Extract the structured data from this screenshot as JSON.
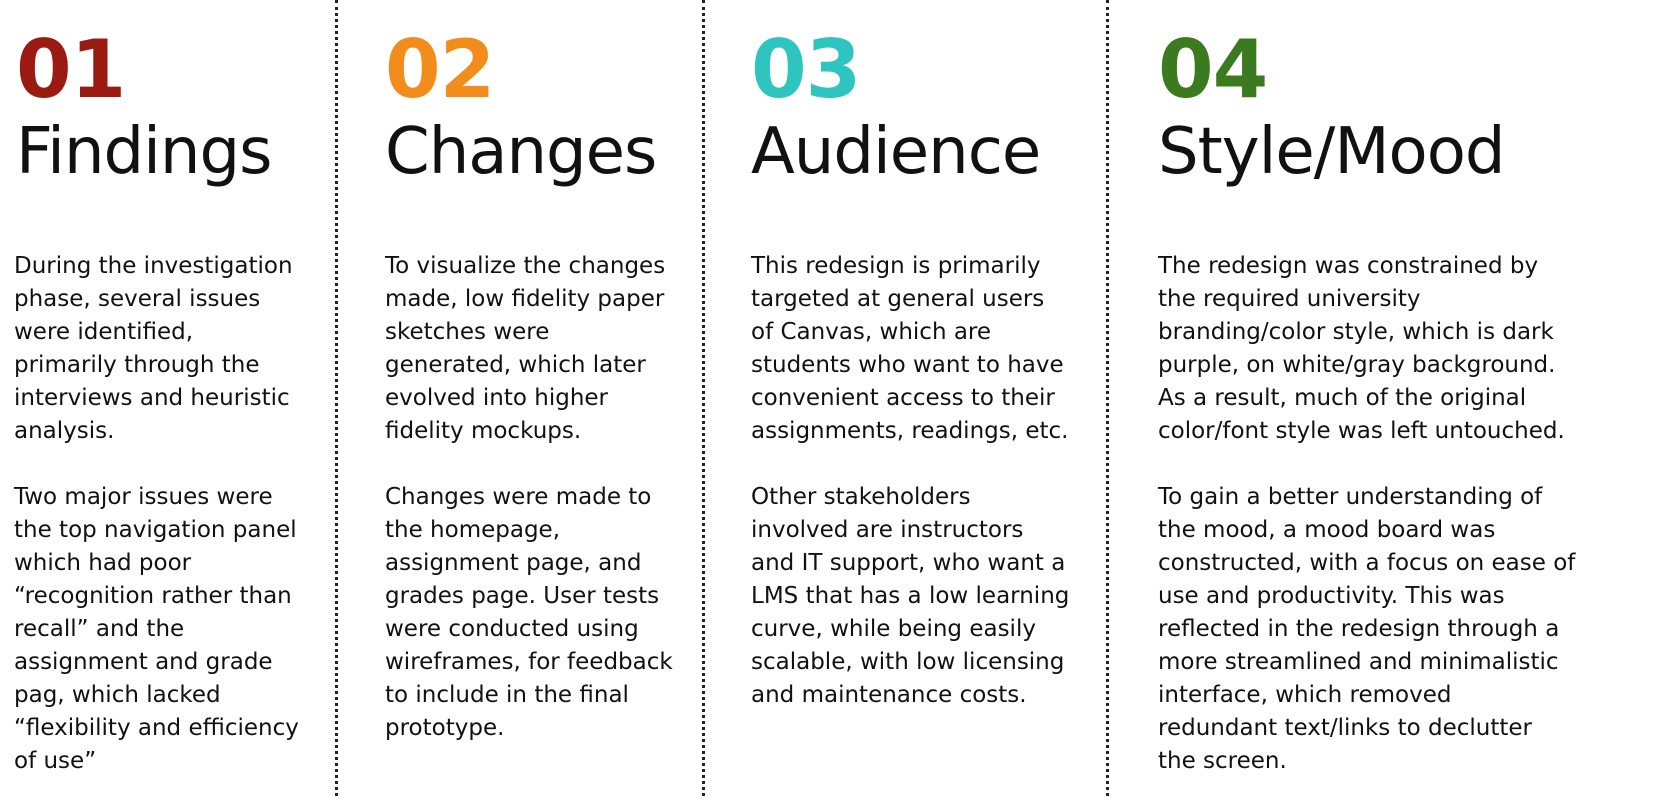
{
  "columns": [
    {
      "number": "01",
      "title": "Findings",
      "color": "#9b1b13",
      "paragraphs": [
        "During the investigation\nphase, several issues\nwere identified,\nprimarily through the\ninterviews and heuristic\nanalysis.",
        "Two major issues were\nthe top navigation panel\nwhich had poor\n“recognition rather than\nrecall” and the\nassignment and grade\npag, which lacked\n“flexibility and efficiency\nof use”"
      ]
    },
    {
      "number": "02",
      "title": "Changes",
      "color": "#f28c1a",
      "paragraphs": [
        "To visualize the changes\nmade, low fidelity paper\nsketches were\ngenerated, which later\nevolved into higher\nfidelity mockups.",
        "Changes were made to\nthe homepage,\nassignment page, and\ngrades page. User tests\nwere conducted using\nwireframes, for feedback\nto  include in the final\nprototype."
      ]
    },
    {
      "number": "03",
      "title": "Audience",
      "color": "#2ec4bf",
      "paragraphs": [
        "This redesign is primarily\ntargeted at general users\nof Canvas, which are\nstudents who want to have\nconvenient access to their\nassignments, readings, etc.",
        "Other stakeholders\ninvolved are instructors\nand IT support, who want a\nLMS that has a low learning\ncurve, while being easily\nscalable, with low licensing\nand maintenance costs."
      ]
    },
    {
      "number": "04",
      "title": "Style/Mood",
      "color": "#3b7a1e",
      "paragraphs": [
        "The redesign was constrained by\nthe required university\nbranding/color style, which is dark\npurple, on white/gray background.\nAs a result, much of the original\ncolor/font style was left untouched.",
        "To gain a better understanding of\nthe mood, a mood board was\nconstructed, with a focus on ease of\nuse and productivity. This was\nreflected in the redesign through a\nmore streamlined and minimalistic\ninterface, which removed\nredundant text/links to declutter\nthe screen."
      ]
    }
  ]
}
